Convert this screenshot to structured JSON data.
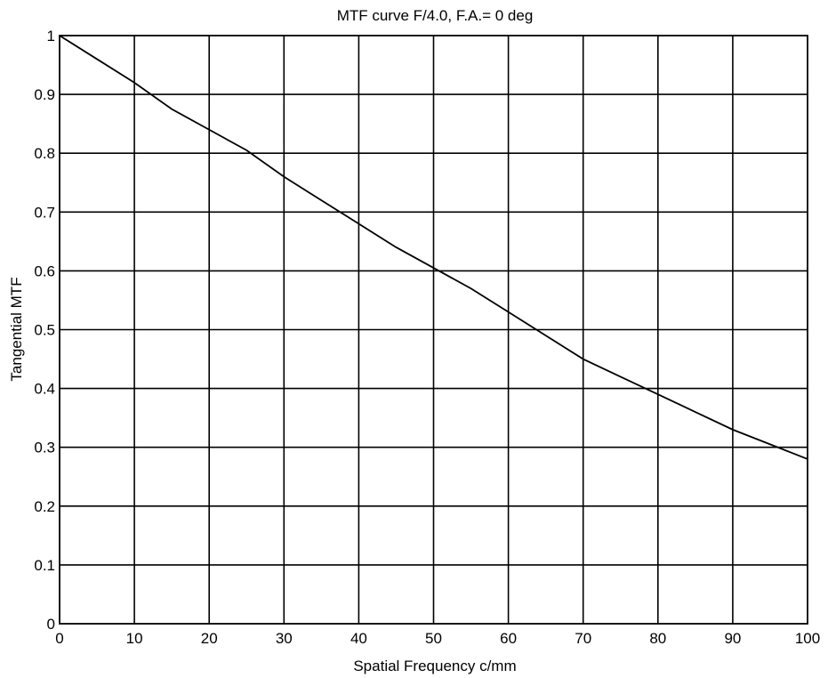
{
  "chart_data": {
    "type": "line",
    "title": "MTF curve F/4.0, F.A.= 0 deg",
    "xlabel": "Spatial Frequency c/mm",
    "ylabel": "Tangential MTF",
    "xlim": [
      0,
      100
    ],
    "ylim": [
      0,
      1
    ],
    "x_ticks": [
      0,
      10,
      20,
      30,
      40,
      50,
      60,
      70,
      80,
      90,
      100
    ],
    "y_ticks": [
      0,
      0.1,
      0.2,
      0.3,
      0.4,
      0.5,
      0.6,
      0.7,
      0.8,
      0.9,
      1
    ],
    "x_tick_labels": [
      "0",
      "10",
      "20",
      "30",
      "40",
      "50",
      "60",
      "70",
      "80",
      "90",
      "100"
    ],
    "y_tick_labels": [
      "0",
      "0.1",
      "0.2",
      "0.3",
      "0.4",
      "0.5",
      "0.6",
      "0.7",
      "0.8",
      "0.9",
      "1"
    ],
    "grid": true,
    "legend": "none",
    "series": [
      {
        "x": [
          0,
          5,
          10,
          15,
          20,
          25,
          30,
          35,
          40,
          45,
          50,
          55,
          60,
          65,
          70,
          75,
          80,
          85,
          90,
          95,
          100
        ],
        "y": [
          1.0,
          0.96,
          0.92,
          0.875,
          0.84,
          0.805,
          0.76,
          0.72,
          0.68,
          0.64,
          0.605,
          0.57,
          0.53,
          0.49,
          0.45,
          0.42,
          0.39,
          0.36,
          0.33,
          0.305,
          0.28
        ],
        "color": "#000000"
      }
    ]
  }
}
